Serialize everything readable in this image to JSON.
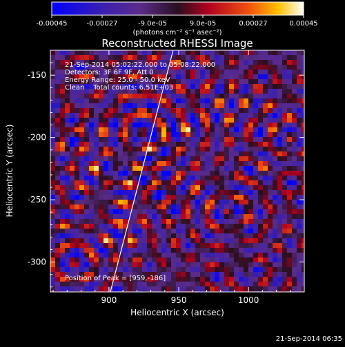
{
  "colorbar": {
    "tick_labels": [
      "-0.00045",
      "-0.00027",
      "-9.0e-05",
      "9.0e-05",
      "0.00027",
      "0.00045"
    ],
    "ticks": [
      -0.00045,
      -0.00027,
      -9e-05,
      9e-05,
      0.00027,
      0.00045
    ],
    "range": [
      -0.00045,
      0.00045
    ],
    "units_label": "(photons cm⁻² s⁻¹ asec⁻²)"
  },
  "chart_data": {
    "type": "heatmap",
    "title": "Reconstructed RHESSI Image",
    "xlabel": "Heliocentric X (arcsec)",
    "ylabel": "Heliocentric Y (arcsec)",
    "xlim": [
      858,
      1040
    ],
    "ylim": [
      -324,
      -130
    ],
    "x_ticks": [
      900,
      950,
      1000
    ],
    "y_ticks": [
      -150,
      -200,
      -250,
      -300
    ],
    "x_tick_labels": [
      "900",
      "950",
      "1000"
    ],
    "y_tick_labels": [
      "-150",
      "-200",
      "-250",
      "-300"
    ],
    "annotations": [
      "21-Sep-2014 05:02:22.000 to 05:08:22.000",
      "Detectors: 3F 6F 9F, Att 0",
      "Energy Range: 25.0 - 50.0 keV",
      "Clean    Total counts: 6.51E+03"
    ],
    "footer_note": "Position of Peak = [959,-186]",
    "peak": [
      959,
      -186
    ],
    "limb_line": [
      [
        901,
        -324
      ],
      [
        946,
        -130
      ]
    ],
    "grid": false,
    "colormap": "blue-purple-red-yellow-white"
  },
  "timestamp": "21-Sep-2014 06:35"
}
